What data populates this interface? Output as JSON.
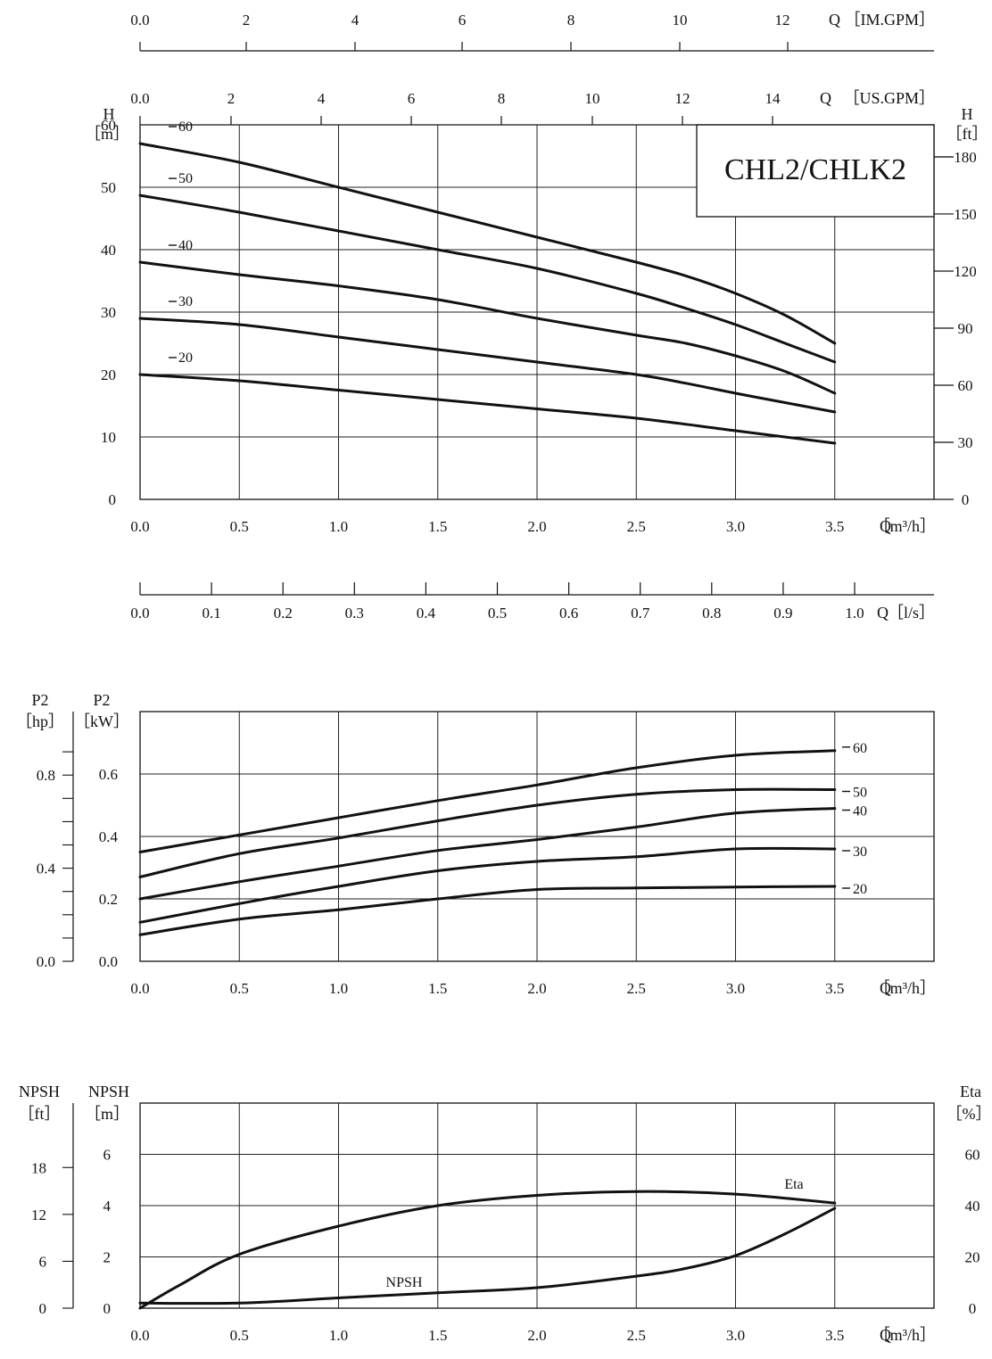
{
  "title": "CHL2/CHLK2",
  "colors": {
    "ink": "#111111",
    "grid": "#222222",
    "background": "#ffffff"
  },
  "chart_data": [
    {
      "id": "head",
      "type": "line",
      "xlabel": "Q［m³/h］",
      "ylabel_left": "H［m］",
      "ylabel_right": "H［ft］",
      "xlim": [
        0,
        4
      ],
      "ylim": [
        0,
        60
      ],
      "x_ticks": [
        "0.0",
        "0.5",
        "1.0",
        "1.5",
        "2.0",
        "2.5",
        "3.0",
        "3.5"
      ],
      "y_ticks": [
        "0",
        "10",
        "20",
        "30",
        "40",
        "50",
        "60"
      ],
      "y_right_ticks": [
        "0",
        "30",
        "60",
        "90",
        "120",
        "150",
        "180"
      ],
      "grid": true,
      "aux_axes": [
        {
          "label": "Q［IM.GPM］",
          "ticks": [
            "0.0",
            "2",
            "4",
            "6",
            "8",
            "10",
            "12"
          ]
        },
        {
          "label": "Q［US.GPM］",
          "ticks": [
            "0.0",
            "2",
            "4",
            "6",
            "8",
            "10",
            "12",
            "14"
          ]
        },
        {
          "label": "Q［l/s］",
          "ticks": [
            "0.0",
            "0.1",
            "0.2",
            "0.3",
            "0.4",
            "0.5",
            "0.6",
            "0.7",
            "0.8",
            "0.9",
            "1.0"
          ]
        }
      ],
      "series": [
        {
          "name": "-60",
          "x": [
            0,
            0.5,
            1.0,
            1.5,
            2.0,
            2.5,
            2.75,
            3.0,
            3.25,
            3.5
          ],
          "y": [
            57,
            54,
            50,
            46,
            42,
            38,
            35.8,
            33,
            29.5,
            25
          ]
        },
        {
          "name": "-50",
          "x": [
            0,
            0.5,
            1.0,
            1.5,
            2.0,
            2.5,
            2.75,
            3.0,
            3.25,
            3.5
          ],
          "y": [
            48.7,
            46,
            43,
            40,
            37,
            33,
            30.6,
            28,
            25,
            22
          ]
        },
        {
          "name": "-40",
          "x": [
            0,
            0.5,
            1.0,
            1.5,
            2.0,
            2.5,
            2.75,
            3.0,
            3.25,
            3.5
          ],
          "y": [
            38,
            36,
            34.2,
            32,
            29,
            26.3,
            25,
            23,
            20.5,
            17
          ]
        },
        {
          "name": "-30",
          "x": [
            0,
            0.5,
            1.0,
            1.5,
            2.0,
            2.5,
            2.75,
            3.0,
            3.25,
            3.5
          ],
          "y": [
            29,
            28,
            26,
            24,
            22,
            20,
            18.6,
            17,
            15.5,
            14
          ]
        },
        {
          "name": "-20",
          "x": [
            0,
            0.5,
            1.0,
            1.5,
            2.0,
            2.5,
            3.0,
            3.5
          ],
          "y": [
            20,
            19,
            17.5,
            16,
            14.5,
            13,
            11,
            9
          ]
        }
      ]
    },
    {
      "id": "power",
      "type": "line",
      "xlabel": "Q［m³/h］",
      "ylabel_left": "P2［kW］",
      "ylabel_outer": "P2［hp］",
      "xlim": [
        0,
        4
      ],
      "ylim": [
        0,
        0.8
      ],
      "x_ticks": [
        "0.0",
        "0.5",
        "1.0",
        "1.5",
        "2.0",
        "2.5",
        "3.0",
        "3.5"
      ],
      "y_ticks": [
        "0.0",
        "0.2",
        "0.4",
        "0.6"
      ],
      "y_outer_ticks": [
        "0.0",
        "0.4",
        "0.8"
      ],
      "grid": true,
      "series": [
        {
          "name": "-60",
          "x": [
            0,
            0.5,
            1.0,
            1.5,
            2.0,
            2.5,
            3.0,
            3.5
          ],
          "y": [
            0.35,
            0.405,
            0.46,
            0.515,
            0.565,
            0.62,
            0.66,
            0.675
          ]
        },
        {
          "name": "-50",
          "x": [
            0,
            0.5,
            1.0,
            1.5,
            2.0,
            2.5,
            3.0,
            3.5
          ],
          "y": [
            0.27,
            0.345,
            0.395,
            0.45,
            0.5,
            0.535,
            0.55,
            0.55
          ]
        },
        {
          "name": "-40",
          "x": [
            0,
            0.5,
            1.0,
            1.5,
            2.0,
            2.5,
            3.0,
            3.5
          ],
          "y": [
            0.2,
            0.255,
            0.305,
            0.355,
            0.39,
            0.43,
            0.475,
            0.49
          ]
        },
        {
          "name": "-30",
          "x": [
            0,
            0.5,
            1.0,
            1.5,
            2.0,
            2.5,
            3.0,
            3.5
          ],
          "y": [
            0.125,
            0.185,
            0.24,
            0.29,
            0.32,
            0.335,
            0.36,
            0.36
          ]
        },
        {
          "name": "-20",
          "x": [
            0,
            0.5,
            1.0,
            1.5,
            2.0,
            2.5,
            3.0,
            3.5
          ],
          "y": [
            0.085,
            0.135,
            0.165,
            0.2,
            0.23,
            0.235,
            0.238,
            0.24
          ]
        }
      ]
    },
    {
      "id": "npsh-eta",
      "type": "line",
      "xlabel": "Q［m³/h］",
      "ylabel_left": "NPSH［m］",
      "ylabel_outer": "NPSH［ft］",
      "ylabel_right": "Eta［%］",
      "xlim": [
        0,
        4
      ],
      "ylim": [
        0,
        8
      ],
      "x_ticks": [
        "0.0",
        "0.5",
        "1.0",
        "1.5",
        "2.0",
        "2.5",
        "3.0",
        "3.5"
      ],
      "y_ticks": [
        "0",
        "2",
        "4",
        "6"
      ],
      "y_outer_ticks": [
        "0",
        "6",
        "12",
        "18"
      ],
      "y_right_ticks": [
        "0",
        "20",
        "40",
        "60"
      ],
      "grid": true,
      "series": [
        {
          "name": "Eta",
          "axis": "right",
          "x": [
            0,
            0.2,
            0.5,
            1.0,
            1.5,
            2.0,
            2.5,
            3.0,
            3.5
          ],
          "y": [
            0,
            9,
            21,
            32,
            40,
            44,
            45.5,
            44.5,
            41
          ]
        },
        {
          "name": "NPSH",
          "axis": "left",
          "x": [
            0,
            0.5,
            1.0,
            1.5,
            2.0,
            2.5,
            2.75,
            3.0,
            3.25,
            3.5
          ],
          "y": [
            0.2,
            0.2,
            0.4,
            0.6,
            0.8,
            1.25,
            1.55,
            2.05,
            2.9,
            3.9
          ]
        }
      ]
    }
  ]
}
